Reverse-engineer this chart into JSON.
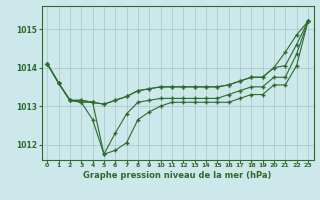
{
  "xlabel": "Graphe pression niveau de la mer (hPa)",
  "bg_color": "#cce8ea",
  "line_color": "#2d6a2d",
  "grid_color": "#aacccc",
  "ylim": [
    1011.6,
    1015.6
  ],
  "xlim": [
    -0.5,
    23.5
  ],
  "yticks": [
    1012,
    1013,
    1014,
    1015
  ],
  "xticks": [
    0,
    1,
    2,
    3,
    4,
    5,
    6,
    7,
    8,
    9,
    10,
    11,
    12,
    13,
    14,
    15,
    16,
    17,
    18,
    19,
    20,
    21,
    22,
    23
  ],
  "series": [
    [
      1014.1,
      1013.6,
      1013.15,
      1013.1,
      1013.1,
      1011.75,
      1011.85,
      1012.05,
      1012.65,
      1012.85,
      1013.0,
      1013.1,
      1013.1,
      1013.1,
      1013.1,
      1013.1,
      1013.1,
      1013.2,
      1013.3,
      1013.3,
      1013.55,
      1013.55,
      1014.05,
      1015.2
    ],
    [
      1014.1,
      1013.6,
      1013.15,
      1013.1,
      1012.65,
      1011.75,
      1012.3,
      1012.8,
      1013.1,
      1013.15,
      1013.2,
      1013.2,
      1013.2,
      1013.2,
      1013.2,
      1013.2,
      1013.3,
      1013.4,
      1013.5,
      1013.5,
      1013.75,
      1013.75,
      1014.35,
      1015.2
    ],
    [
      1014.1,
      1013.6,
      1013.15,
      1013.15,
      1013.1,
      1013.05,
      1013.15,
      1013.25,
      1013.4,
      1013.45,
      1013.5,
      1013.5,
      1013.5,
      1013.5,
      1013.5,
      1013.5,
      1013.55,
      1013.65,
      1013.75,
      1013.75,
      1014.0,
      1014.05,
      1014.6,
      1015.2
    ],
    [
      1014.1,
      1013.6,
      1013.15,
      1013.15,
      1013.1,
      1013.05,
      1013.15,
      1013.25,
      1013.4,
      1013.45,
      1013.5,
      1013.5,
      1013.5,
      1013.5,
      1013.5,
      1013.5,
      1013.55,
      1013.65,
      1013.75,
      1013.75,
      1014.0,
      1014.4,
      1014.85,
      1015.2
    ]
  ]
}
